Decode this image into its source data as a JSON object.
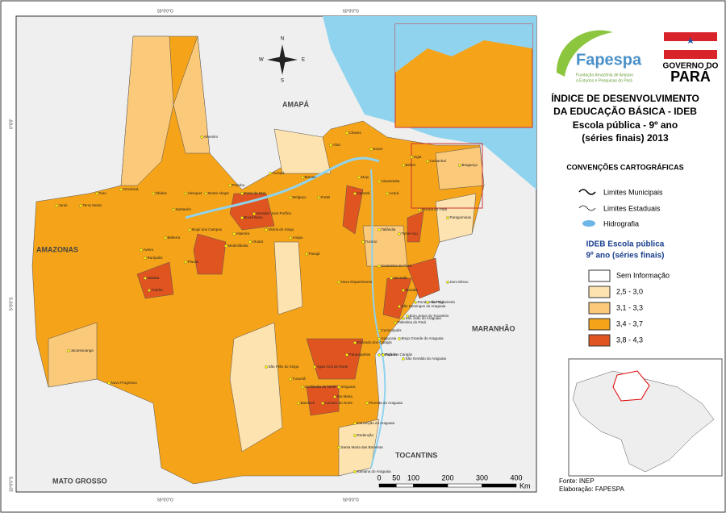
{
  "title": [
    "ÍNDICE DE DESENVOLVIMENTO",
    "DA EDUCAÇÃO BÁSICA - IDEB",
    "Escola pública - 9º ano",
    "(séries finais) 2013"
  ],
  "logos": {
    "fapespa": "Fapespa",
    "fapespa_subtitle": [
      "Fundação Amazônia de Amparo",
      "a Estudos e Pesquisas do Pará"
    ],
    "governo": "GOVERNO DO",
    "para": "PARÁ"
  },
  "conventions": {
    "title": "CONVENÇÕES CARTOGRÁFICAS",
    "items": [
      "Limites Municipais",
      "Limites Estaduais",
      "Hidrografia"
    ]
  },
  "legend": {
    "title": [
      "IDEB Escola pública",
      "9º ano (séries finais)"
    ],
    "items": [
      {
        "label": "Sem Informação",
        "color": "#ffffff"
      },
      {
        "label": "2,5 - 3,0",
        "color": "#fde3b0"
      },
      {
        "label": "3,1 - 3,3",
        "color": "#fbc97a"
      },
      {
        "label": "3,4 - 3,7",
        "color": "#f5a318"
      },
      {
        "label": "3,8 - 4,3",
        "color": "#e0541f"
      }
    ]
  },
  "neighbors": [
    "AMAPÁ",
    "AMAZONAS",
    "MARANHÃO",
    "TOCANTINS",
    "MATO GROSSO"
  ],
  "grid_labels": {
    "lon": [
      "55°0'0\"O",
      "50°0'0\"O"
    ],
    "lat": [
      "0°0'0\"",
      "5°0'0\"S",
      "10°0'0\"S"
    ]
  },
  "compass": [
    "N",
    "S",
    "E",
    "W"
  ],
  "scale": {
    "ticks": [
      0,
      50,
      100,
      200,
      300,
      400
    ],
    "unit": "Km"
  },
  "source": [
    "Fonte: INEP",
    "Elaboração: FAPESPA"
  ],
  "municipalities": [
    "Almeirim",
    "Oriximiná",
    "Óbidos",
    "Alenquer",
    "Monte Alegre",
    "Prainha",
    "Santarém",
    "Faro",
    "Terra Santa",
    "Juruti",
    "Porto de Moz",
    "Gurupá",
    "Breves",
    "Portel",
    "Melgaço",
    "Belém",
    "Castanhal",
    "Paragominas",
    "Tailândia",
    "Tucuruí",
    "Marabá",
    "Parauapebas",
    "Redenção",
    "Altamira",
    "Itaituba",
    "Jacareacanga",
    "Novo Progresso",
    "Uruará",
    "Medicilândia",
    "Placas",
    "Rurópolis",
    "Aveiro",
    "Belterra",
    "Trairão",
    "São Félix do Xingu",
    "Tucumã",
    "Ourilândia do Norte",
    "Xinguara",
    "Conceição do Araguaia",
    "Santana do Araguaia",
    "Dom Eliseu",
    "Rondon do Pará",
    "Novo Repartimento",
    "Pacajá",
    "Anapu",
    "Senador José Porfírio",
    "Afuá",
    "Chaves",
    "Soure",
    "Bragança",
    "Vigia",
    "Abaetetuba",
    "Cametá",
    "Goianésia do Pará",
    "Jacundá",
    "Curionópolis",
    "Eldorado dos Carajás",
    "Canaã dos Carajás",
    "Água Azul do Norte",
    "Rio Maria",
    "Cumaru do Norte",
    "Bannach",
    "Floresta do Araguaia",
    "Santa Maria das Barreiras",
    "Sapucaia",
    "Piçarra",
    "São Geraldo do Araguaia",
    "Brejo Grande do Araguaia",
    "Palestina do Pará",
    "São João do Araguaia",
    "São Domingos do Araguaia",
    "Bom Jesus do Tocantins",
    "Abel Figueiredo",
    "Ipixuna do Pará",
    "Tomé-Açu",
    "Moju",
    "Acará",
    "Mojuí dos Campos",
    "Vitória do Xingu",
    "Brasil Novo"
  ]
}
